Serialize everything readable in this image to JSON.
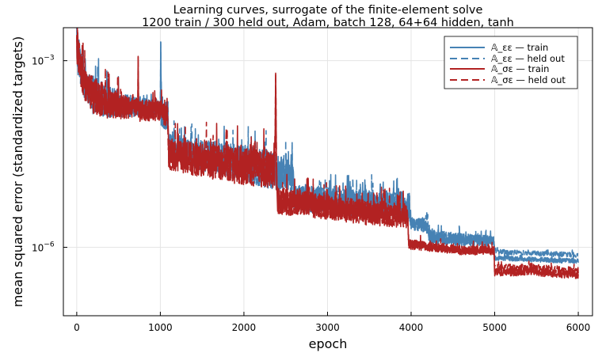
{
  "chart_data": {
    "type": "line",
    "title": "Learning curves, surrogate of the finite-element solve",
    "subtitle": "1200 train / 300 held out, Adam, batch 128, 64+64 hidden, tanh",
    "xlabel": "epoch",
    "ylabel": "mean squared error (standardized targets)",
    "xlim": [
      -160,
      6170
    ],
    "ylim": [
      -7.1,
      -2.47
    ],
    "y_scale": "log10",
    "grid": true,
    "legend_position": "top-right",
    "x_ticks": [
      {
        "value": 0,
        "label": "0"
      },
      {
        "value": 1000,
        "label": "1000"
      },
      {
        "value": 2000,
        "label": "2000"
      },
      {
        "value": 3000,
        "label": "3000"
      },
      {
        "value": 4000,
        "label": "4000"
      },
      {
        "value": 5000,
        "label": "5000"
      },
      {
        "value": 6000,
        "label": "6000"
      }
    ],
    "y_ticks": [
      {
        "log10": -3,
        "base": "10",
        "exp": "−3"
      },
      {
        "log10": -6,
        "base": "10",
        "exp": "−6"
      }
    ],
    "series": [
      {
        "name": "𝔸_εε — train",
        "color": "#4682B4",
        "dash": "solid",
        "points": [
          [
            0,
            -2.67
          ],
          [
            8,
            -2.82
          ],
          [
            30,
            -3.0
          ],
          [
            60,
            -3.2
          ],
          [
            100,
            -3.38
          ],
          [
            200,
            -3.55
          ],
          [
            400,
            -3.67
          ],
          [
            600,
            -3.72
          ],
          [
            800,
            -3.75
          ],
          [
            1000,
            -3.78
          ],
          [
            1005,
            -2.7
          ],
          [
            1010,
            -3.8
          ],
          [
            1090,
            -3.9
          ],
          [
            1100,
            -4.4
          ],
          [
            1500,
            -4.52
          ],
          [
            2000,
            -4.65
          ],
          [
            2400,
            -4.8
          ],
          [
            2500,
            -4.87
          ],
          [
            2590,
            -4.9
          ],
          [
            2600,
            -5.2
          ],
          [
            3000,
            -5.25
          ],
          [
            3500,
            -5.3
          ],
          [
            3980,
            -5.33
          ],
          [
            4000,
            -5.62
          ],
          [
            4200,
            -5.66
          ],
          [
            4210,
            -5.83
          ],
          [
            4600,
            -5.88
          ],
          [
            4990,
            -5.9
          ],
          [
            5000,
            -6.17
          ],
          [
            5500,
            -6.2
          ],
          [
            6000,
            -6.22
          ]
        ],
        "noise": [
          0.22,
          0.4,
          0.28,
          0.28,
          0.25,
          0.32,
          0.25,
          0.18,
          0.15,
          0.16,
          0.0,
          0.25,
          0.25,
          0.22,
          0.25,
          0.3,
          0.3,
          0.28,
          0.3,
          0.2,
          0.22,
          0.22,
          0.22,
          0.1,
          0.12,
          0.12,
          0.1,
          0.08,
          0.04,
          0.04,
          0.04
        ]
      },
      {
        "name": "𝔸_εε — held out",
        "color": "#4682B4",
        "dash": "dashed",
        "points": [
          [
            0,
            -2.67
          ],
          [
            8,
            -2.82
          ],
          [
            30,
            -3.0
          ],
          [
            60,
            -3.2
          ],
          [
            100,
            -3.38
          ],
          [
            200,
            -3.55
          ],
          [
            400,
            -3.67
          ],
          [
            600,
            -3.72
          ],
          [
            800,
            -3.75
          ],
          [
            1000,
            -3.78
          ],
          [
            1005,
            -2.7
          ],
          [
            1010,
            -3.8
          ],
          [
            1090,
            -3.9
          ],
          [
            1100,
            -4.4
          ],
          [
            1500,
            -4.52
          ],
          [
            2000,
            -4.65
          ],
          [
            2400,
            -4.8
          ],
          [
            2500,
            -4.87
          ],
          [
            2590,
            -4.9
          ],
          [
            2600,
            -5.2
          ],
          [
            3000,
            -5.25
          ],
          [
            3500,
            -5.3
          ],
          [
            3980,
            -5.33
          ],
          [
            4000,
            -5.62
          ],
          [
            4200,
            -5.66
          ],
          [
            4210,
            -5.83
          ],
          [
            4600,
            -5.88
          ],
          [
            4990,
            -5.9
          ],
          [
            5000,
            -6.07
          ],
          [
            5500,
            -6.1
          ],
          [
            6000,
            -6.12
          ]
        ],
        "noise": [
          0.22,
          0.4,
          0.28,
          0.28,
          0.25,
          0.32,
          0.25,
          0.18,
          0.15,
          0.16,
          0.0,
          0.25,
          0.25,
          0.22,
          0.25,
          0.3,
          0.3,
          0.28,
          0.3,
          0.2,
          0.22,
          0.22,
          0.22,
          0.1,
          0.12,
          0.12,
          0.1,
          0.08,
          0.04,
          0.04,
          0.04
        ]
      },
      {
        "name": "𝔸_σε — train",
        "color": "#B22222",
        "dash": "solid",
        "points": [
          [
            0,
            -2.7
          ],
          [
            10,
            -2.85
          ],
          [
            30,
            -3.0
          ],
          [
            60,
            -3.2
          ],
          [
            100,
            -3.4
          ],
          [
            200,
            -3.55
          ],
          [
            400,
            -3.7
          ],
          [
            600,
            -3.75
          ],
          [
            730,
            -3.75
          ],
          [
            735,
            -2.93
          ],
          [
            740,
            -3.8
          ],
          [
            1000,
            -3.8
          ],
          [
            1090,
            -3.95
          ],
          [
            1100,
            -4.5
          ],
          [
            1500,
            -4.6
          ],
          [
            2000,
            -4.7
          ],
          [
            2370,
            -4.75
          ],
          [
            2380,
            -3.2
          ],
          [
            2390,
            -4.8
          ],
          [
            2400,
            -5.25
          ],
          [
            3000,
            -5.35
          ],
          [
            3500,
            -5.45
          ],
          [
            3960,
            -5.5
          ],
          [
            3970,
            -5.95
          ],
          [
            4600,
            -6.05
          ],
          [
            4990,
            -6.05
          ],
          [
            5000,
            -6.4
          ],
          [
            5500,
            -6.4
          ],
          [
            6000,
            -6.45
          ]
        ],
        "noise": [
          0.22,
          0.35,
          0.28,
          0.28,
          0.25,
          0.3,
          0.25,
          0.18,
          0.15,
          0.0,
          0.18,
          0.16,
          0.2,
          0.25,
          0.28,
          0.3,
          0.3,
          0.0,
          0.3,
          0.22,
          0.2,
          0.2,
          0.2,
          0.08,
          0.07,
          0.07,
          0.06,
          0.06,
          0.06
        ]
      },
      {
        "name": "𝔸_σε — held out",
        "color": "#B22222",
        "dash": "dashed",
        "points": [
          [
            0,
            -2.7
          ],
          [
            10,
            -2.85
          ],
          [
            30,
            -3.0
          ],
          [
            60,
            -3.2
          ],
          [
            100,
            -3.4
          ],
          [
            200,
            -3.55
          ],
          [
            400,
            -3.7
          ],
          [
            600,
            -3.75
          ],
          [
            730,
            -3.75
          ],
          [
            735,
            -2.93
          ],
          [
            740,
            -3.8
          ],
          [
            1000,
            -3.8
          ],
          [
            1090,
            -3.95
          ],
          [
            1100,
            -4.5
          ],
          [
            1500,
            -4.6
          ],
          [
            2000,
            -4.7
          ],
          [
            2370,
            -4.75
          ],
          [
            2380,
            -3.2
          ],
          [
            2390,
            -4.8
          ],
          [
            2400,
            -5.25
          ],
          [
            3000,
            -5.35
          ],
          [
            3500,
            -5.45
          ],
          [
            3960,
            -5.5
          ],
          [
            3970,
            -5.95
          ],
          [
            4600,
            -6.05
          ],
          [
            4990,
            -6.05
          ],
          [
            5000,
            -6.33
          ],
          [
            5500,
            -6.33
          ],
          [
            6000,
            -6.38
          ]
        ],
        "noise": [
          0.22,
          0.35,
          0.28,
          0.28,
          0.25,
          0.3,
          0.25,
          0.18,
          0.15,
          0.0,
          0.18,
          0.16,
          0.2,
          0.25,
          0.28,
          0.3,
          0.3,
          0.0,
          0.3,
          0.22,
          0.2,
          0.2,
          0.2,
          0.08,
          0.07,
          0.07,
          0.06,
          0.06,
          0.06
        ]
      }
    ]
  }
}
